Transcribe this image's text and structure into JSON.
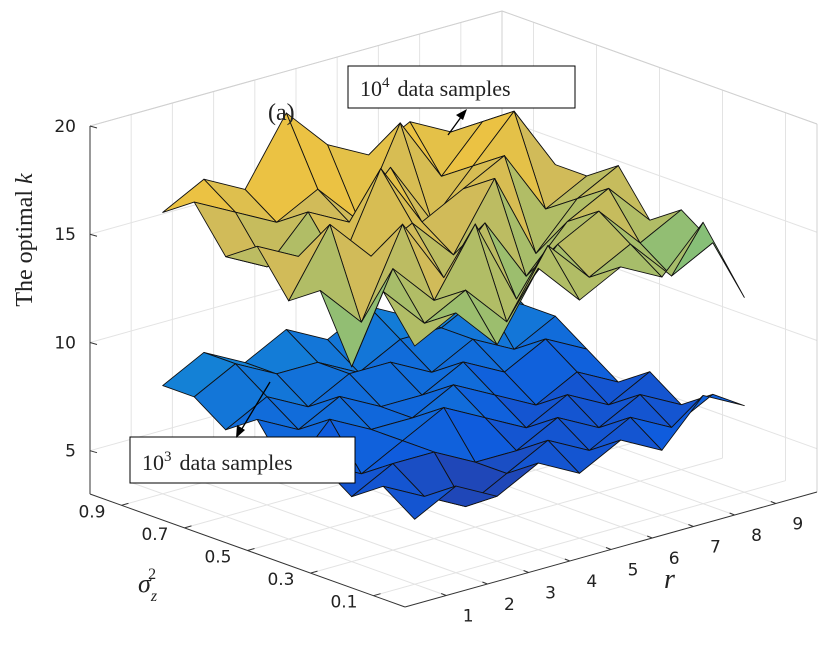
{
  "chart_data": {
    "type": "surface3d",
    "panel_label": "(a)",
    "xlabel": "r",
    "ylabel": {
      "symbol": "σ",
      "sub": "z",
      "sup": "2"
    },
    "zlabel": {
      "text": "The optimal",
      "var": "k"
    },
    "x": [
      1,
      2,
      3,
      4,
      5,
      6,
      7,
      8,
      9
    ],
    "y": [
      0.1,
      0.2,
      0.3,
      0.4,
      0.5,
      0.6,
      0.7,
      0.8,
      0.9
    ],
    "xlim": [
      0,
      10
    ],
    "ylim": [
      0,
      1
    ],
    "zlim": [
      3,
      20
    ],
    "xticks": [
      1,
      2,
      3,
      4,
      5,
      6,
      7,
      8,
      9
    ],
    "yticks": [
      0.1,
      0.3,
      0.5,
      0.7,
      0.9
    ],
    "zticks": [
      5,
      10,
      15,
      20
    ],
    "grid": true,
    "colormap": [
      "#352a87",
      "#0f5cdd",
      "#1481d6",
      "#06a4ca",
      "#2eb7a4",
      "#87bf77",
      "#d1bb59",
      "#fec832",
      "#f9fb0e"
    ],
    "series": [
      {
        "z": [
          [
            6,
            7,
            6,
            7,
            6,
            7,
            6,
            8,
            7
          ],
          [
            7,
            6,
            5,
            6,
            7,
            6,
            7,
            6,
            7
          ],
          [
            6,
            7,
            7,
            6,
            6,
            7,
            6,
            7,
            6
          ],
          [
            7,
            6,
            7,
            8,
            7,
            6,
            7,
            6,
            7
          ],
          [
            6,
            8,
            7,
            7,
            8,
            7,
            6,
            7,
            6
          ],
          [
            8,
            7,
            8,
            7,
            7,
            8,
            7,
            8,
            7
          ],
          [
            7,
            8,
            7,
            8,
            8,
            7,
            8,
            7,
            8
          ],
          [
            8,
            9,
            8,
            8,
            7,
            8,
            8,
            9,
            8
          ],
          [
            8,
            9,
            8,
            9,
            8,
            9,
            8,
            9,
            9
          ]
        ]
      },
      {
        "z": [
          [
            14,
            15,
            13,
            16,
            14,
            15,
            14,
            16,
            12
          ],
          [
            16,
            14,
            15,
            13,
            16,
            14,
            15,
            13,
            14
          ],
          [
            12,
            16,
            14,
            17,
            13,
            15,
            16,
            14,
            15
          ],
          [
            15,
            13,
            17,
            14,
            16,
            13,
            15,
            16,
            14
          ],
          [
            14,
            17,
            15,
            16,
            14,
            17,
            13,
            15,
            16
          ],
          [
            16,
            15,
            14,
            18,
            15,
            16,
            17,
            14,
            15
          ],
          [
            15,
            14,
            16,
            15,
            17,
            14,
            16,
            18,
            15
          ],
          [
            17,
            16,
            15,
            16,
            14,
            18,
            15,
            17,
            16
          ],
          [
            16,
            17,
            16,
            19,
            17,
            16,
            17,
            16,
            15
          ]
        ]
      }
    ],
    "annotations": [
      {
        "base": "10",
        "exponent": "4",
        "text": "data samples"
      },
      {
        "base": "10",
        "exponent": "3",
        "text": "data samples"
      }
    ]
  }
}
